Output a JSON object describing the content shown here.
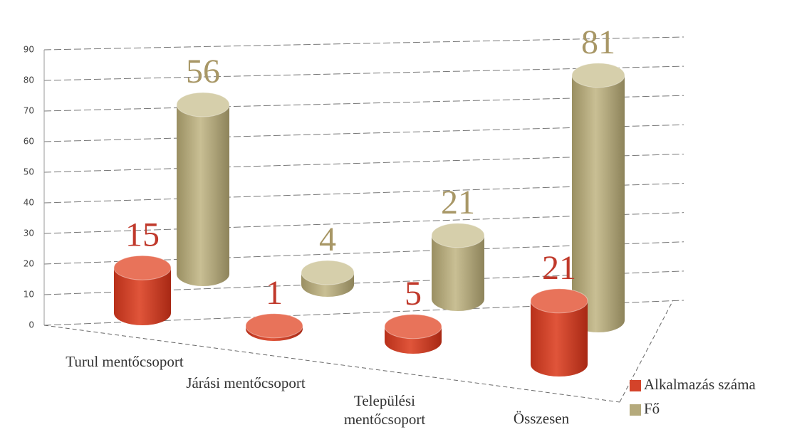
{
  "chart_data": {
    "type": "bar3d",
    "categories": [
      "Turul mentőcsoport",
      "Járási mentőcsoport",
      "Települési mentőcsoport",
      "Összesen"
    ],
    "series": [
      {
        "name": "Alkalmazás száma",
        "color": "#d4432a",
        "values": [
          15,
          1,
          5,
          21
        ]
      },
      {
        "name": "Fő",
        "color": "#b5aa7c",
        "values": [
          56,
          4,
          21,
          81
        ]
      }
    ],
    "ylim": [
      0,
      90
    ],
    "yticks": [
      0,
      10,
      20,
      30,
      40,
      50,
      60,
      70,
      80,
      90
    ],
    "grid": true,
    "legend": "right"
  }
}
